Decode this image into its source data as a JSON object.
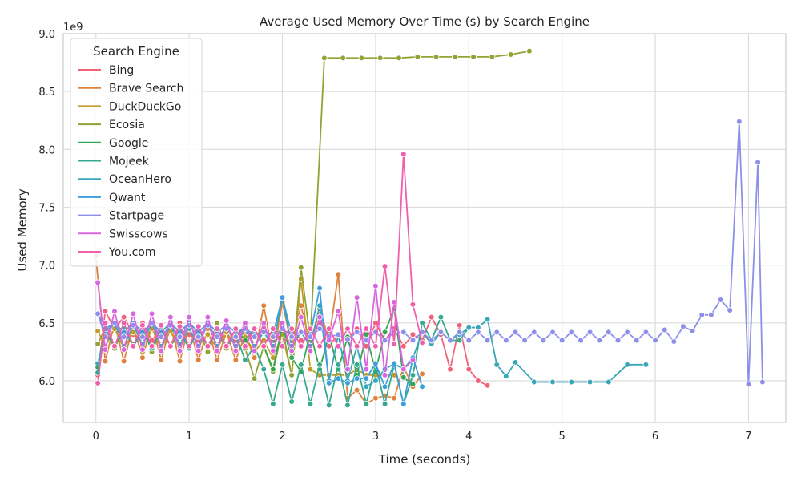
{
  "chart_data": {
    "type": "line",
    "title": "Average Used Memory Over Time (s) by Search Engine",
    "xlabel": "Time (seconds)",
    "ylabel": "Used Memory",
    "y_offset_label": "1e9",
    "xlim": [
      -0.35,
      7.4
    ],
    "ylim": [
      5.64,
      9.0
    ],
    "xticks": [
      0,
      1,
      2,
      3,
      4,
      5,
      6,
      7
    ],
    "xtick_labels": [
      "0",
      "1",
      "2",
      "3",
      "4",
      "5",
      "6",
      "7"
    ],
    "yticks": [
      6.0,
      6.5,
      7.0,
      7.5,
      8.0,
      8.5,
      9.0
    ],
    "ytick_labels": [
      "6.0",
      "6.5",
      "7.0",
      "7.5",
      "8.0",
      "8.5",
      "9.0"
    ],
    "grid": true,
    "legend": {
      "title": "Search Engine",
      "position": "upper-left"
    },
    "series": [
      {
        "name": "Bing",
        "color": "#f0627a",
        "x": [
          0.02,
          0.1,
          0.2,
          0.3,
          0.4,
          0.5,
          0.6,
          0.7,
          0.8,
          0.9,
          1.0,
          1.1,
          1.2,
          1.3,
          1.4,
          1.5,
          1.6,
          1.7,
          1.8,
          1.9,
          2.0,
          2.1,
          2.2,
          2.3,
          2.4,
          2.5,
          2.6,
          2.7,
          2.8,
          2.9,
          3.0,
          3.1,
          3.2,
          3.3,
          3.4,
          3.5,
          3.6,
          3.7,
          3.8,
          3.9,
          4.0,
          4.1,
          4.2
        ],
        "y": [
          6.05,
          6.6,
          6.45,
          6.55,
          6.4,
          6.5,
          6.35,
          6.45,
          6.3,
          6.5,
          6.4,
          6.35,
          6.5,
          6.3,
          6.45,
          6.35,
          6.5,
          6.3,
          6.45,
          6.35,
          6.4,
          6.45,
          6.35,
          6.4,
          6.5,
          6.3,
          6.4,
          6.35,
          6.45,
          6.3,
          6.5,
          6.35,
          6.45,
          6.3,
          6.4,
          6.35,
          6.55,
          6.4,
          6.1,
          6.48,
          6.1,
          6.0,
          5.96
        ]
      },
      {
        "name": "Brave Search",
        "color": "#e0813e",
        "x": [
          0.0,
          0.1,
          0.2,
          0.3,
          0.4,
          0.5,
          0.6,
          0.7,
          0.8,
          0.9,
          1.0,
          1.1,
          1.2,
          1.3,
          1.4,
          1.5,
          1.6,
          1.7,
          1.8,
          1.9,
          2.0,
          2.1,
          2.2,
          2.3,
          2.4,
          2.5,
          2.6,
          2.7,
          2.8,
          2.9,
          3.0,
          3.1,
          3.2,
          3.3,
          3.4,
          3.5
        ],
        "y": [
          7.08,
          6.17,
          6.5,
          6.17,
          6.48,
          6.2,
          6.5,
          6.18,
          6.48,
          6.17,
          6.48,
          6.18,
          6.45,
          6.18,
          6.42,
          6.18,
          6.4,
          6.2,
          6.65,
          6.2,
          6.68,
          6.3,
          6.65,
          6.3,
          6.62,
          6.35,
          6.92,
          5.85,
          5.92,
          5.8,
          5.85,
          5.87,
          5.85,
          6.12,
          5.95,
          6.06
        ]
      },
      {
        "name": "DuckDuckGo",
        "color": "#c49a2c",
        "x": [
          0.02,
          0.1,
          0.2,
          0.3,
          0.4,
          0.5,
          0.6,
          0.7,
          0.8,
          0.9,
          1.0,
          1.1,
          1.2,
          1.3,
          1.4,
          1.5,
          1.6,
          1.7,
          1.8,
          1.9,
          2.0,
          2.1,
          2.2,
          2.3,
          2.4,
          2.5,
          2.6,
          2.7,
          2.8,
          2.9,
          3.0,
          3.1,
          3.2
        ],
        "y": [
          6.43,
          6.3,
          6.45,
          6.28,
          6.42,
          6.25,
          6.45,
          6.28,
          6.43,
          6.27,
          6.45,
          6.3,
          6.4,
          6.28,
          6.42,
          6.3,
          6.38,
          6.25,
          6.35,
          6.2,
          6.4,
          6.05,
          6.88,
          6.1,
          6.05,
          6.05,
          6.05,
          6.05,
          6.1,
          6.05,
          6.05,
          6.05,
          6.05
        ]
      },
      {
        "name": "Ecosia",
        "color": "#8fa432",
        "x": [
          0.02,
          0.1,
          0.2,
          0.3,
          0.4,
          0.5,
          0.6,
          0.7,
          0.8,
          0.9,
          1.0,
          1.1,
          1.2,
          1.3,
          1.4,
          1.5,
          1.6,
          1.7,
          1.8,
          1.9,
          2.0,
          2.1,
          2.2,
          2.3,
          2.45,
          2.65,
          2.85,
          3.05,
          3.25,
          3.45,
          3.65,
          3.85,
          4.05,
          4.25,
          4.45,
          4.65
        ],
        "y": [
          6.32,
          6.45,
          6.28,
          6.45,
          6.3,
          6.47,
          6.25,
          6.45,
          6.3,
          6.47,
          6.28,
          6.45,
          6.25,
          6.5,
          6.28,
          6.45,
          6.28,
          6.02,
          6.3,
          6.08,
          6.45,
          6.05,
          6.98,
          6.35,
          8.79,
          8.79,
          8.79,
          8.79,
          8.79,
          8.8,
          8.8,
          8.8,
          8.8,
          8.8,
          8.82,
          8.85
        ]
      },
      {
        "name": "Google",
        "color": "#33a74e",
        "x": [
          0.02,
          0.1,
          0.2,
          0.3,
          0.4,
          0.5,
          0.6,
          0.7,
          0.8,
          0.9,
          1.0,
          1.1,
          1.2,
          1.3,
          1.4,
          1.5,
          1.6,
          1.7,
          1.8,
          1.9,
          2.0,
          2.1,
          2.2,
          2.3,
          2.4,
          2.5,
          2.6,
          2.7,
          2.8,
          2.9,
          3.0,
          3.1,
          3.2,
          3.3,
          3.4
        ],
        "y": [
          6.12,
          6.42,
          6.3,
          6.45,
          6.32,
          6.42,
          6.3,
          6.45,
          6.3,
          6.42,
          6.3,
          6.45,
          6.3,
          6.42,
          6.3,
          6.45,
          6.35,
          6.45,
          6.3,
          6.1,
          6.48,
          6.2,
          6.08,
          6.42,
          6.1,
          6.4,
          6.1,
          6.38,
          6.05,
          6.4,
          6.08,
          6.42,
          6.62,
          6.03,
          5.97
        ]
      },
      {
        "name": "Mojeek",
        "color": "#36a98f",
        "x": [
          0.02,
          0.1,
          0.2,
          0.3,
          0.4,
          0.5,
          0.6,
          0.7,
          0.8,
          0.9,
          1.0,
          1.1,
          1.2,
          1.3,
          1.4,
          1.5,
          1.6,
          1.7,
          1.8,
          1.9,
          2.0,
          2.1,
          2.2,
          2.3,
          2.4,
          2.5,
          2.6,
          2.7,
          2.8,
          2.9,
          3.0,
          3.1,
          3.2,
          3.3,
          3.4,
          3.5,
          3.6,
          3.7,
          3.8,
          3.9,
          4.0,
          4.1,
          4.2
        ],
        "y": [
          6.07,
          6.42,
          6.3,
          6.45,
          6.3,
          6.42,
          6.28,
          6.45,
          6.3,
          6.43,
          6.28,
          6.45,
          6.3,
          6.45,
          6.3,
          6.4,
          6.18,
          6.3,
          6.1,
          5.8,
          6.14,
          5.82,
          6.14,
          5.8,
          6.14,
          5.79,
          6.14,
          5.79,
          6.14,
          5.8,
          6.14,
          5.8,
          6.14,
          5.8,
          6.05,
          6.5,
          6.35,
          6.55,
          6.35,
          6.35,
          6.46,
          6.46,
          6.53
        ]
      },
      {
        "name": "OceanHero",
        "color": "#38a7b8",
        "x": [
          0.02,
          0.1,
          0.2,
          0.3,
          0.4,
          0.5,
          0.6,
          0.7,
          0.8,
          0.9,
          1.0,
          1.1,
          1.2,
          1.3,
          1.4,
          1.5,
          1.6,
          1.7,
          1.8,
          1.9,
          2.0,
          2.1,
          2.2,
          2.3,
          2.4,
          2.5,
          2.6,
          2.7,
          2.8,
          2.9,
          3.0,
          3.1,
          3.2,
          3.3,
          3.4,
          3.5,
          3.6,
          3.7,
          3.8,
          3.9,
          4.0,
          4.1,
          4.2,
          4.3,
          4.4,
          4.5,
          4.7,
          4.9,
          5.1,
          5.3,
          5.5,
          5.7,
          5.9
        ],
        "y": [
          6.15,
          6.42,
          6.5,
          6.3,
          6.48,
          6.32,
          6.5,
          6.3,
          6.48,
          6.32,
          6.45,
          6.3,
          6.5,
          6.3,
          6.48,
          6.3,
          6.45,
          6.3,
          6.42,
          6.3,
          6.72,
          6.3,
          6.42,
          6.3,
          6.65,
          6.0,
          6.4,
          6.0,
          6.3,
          5.95,
          6.0,
          6.1,
          6.15,
          6.1,
          6.2,
          6.42,
          6.32,
          6.42,
          6.35,
          6.4,
          6.46,
          6.46,
          6.53,
          6.14,
          6.04,
          6.16,
          5.99,
          5.99,
          5.99,
          5.99,
          5.99,
          6.14,
          6.14
        ]
      },
      {
        "name": "Qwant",
        "color": "#3b9fdb",
        "x": [
          0.02,
          0.1,
          0.2,
          0.3,
          0.4,
          0.5,
          0.6,
          0.7,
          0.8,
          0.9,
          1.0,
          1.1,
          1.2,
          1.3,
          1.4,
          1.5,
          1.6,
          1.7,
          1.8,
          1.9,
          2.0,
          2.1,
          2.2,
          2.3,
          2.4,
          2.5,
          2.6,
          2.7,
          2.8,
          2.9,
          3.0,
          3.1,
          3.2,
          3.3,
          3.4,
          3.5
        ],
        "y": [
          6.58,
          6.45,
          6.5,
          6.42,
          6.5,
          6.42,
          6.5,
          6.42,
          6.5,
          6.42,
          6.5,
          6.42,
          6.5,
          6.42,
          6.48,
          6.42,
          6.45,
          6.4,
          6.42,
          6.4,
          6.72,
          6.4,
          6.42,
          6.4,
          6.8,
          5.98,
          6.02,
          5.98,
          6.02,
          6.02,
          6.15,
          5.95,
          6.15,
          5.8,
          6.2,
          5.95
        ]
      },
      {
        "name": "Startpage",
        "color": "#8e8fe8",
        "x": [
          0.02,
          0.1,
          0.2,
          0.3,
          0.4,
          0.5,
          0.6,
          0.7,
          0.8,
          0.9,
          1.0,
          1.1,
          1.2,
          1.3,
          1.4,
          1.5,
          1.6,
          1.7,
          1.8,
          1.9,
          2.0,
          2.1,
          2.2,
          2.3,
          2.4,
          2.5,
          2.6,
          2.7,
          2.8,
          2.9,
          3.0,
          3.1,
          3.2,
          3.3,
          3.4,
          3.5,
          3.6,
          3.7,
          3.8,
          3.9,
          4.0,
          4.1,
          4.2,
          4.3,
          4.4,
          4.5,
          4.6,
          4.7,
          4.8,
          4.9,
          5.0,
          5.1,
          5.2,
          5.3,
          5.4,
          5.5,
          5.6,
          5.7,
          5.8,
          5.9,
          6.0,
          6.1,
          6.2,
          6.3,
          6.4,
          6.5,
          6.6,
          6.7,
          6.8,
          6.9,
          7.0,
          7.1,
          7.15
        ],
        "y": [
          6.58,
          6.38,
          6.5,
          6.38,
          6.48,
          6.38,
          6.5,
          6.38,
          6.48,
          6.38,
          6.48,
          6.38,
          6.48,
          6.38,
          6.45,
          6.38,
          6.45,
          6.38,
          6.42,
          6.38,
          6.45,
          6.38,
          6.42,
          6.38,
          6.45,
          6.38,
          6.4,
          6.36,
          6.42,
          6.35,
          6.42,
          6.35,
          6.42,
          6.42,
          6.35,
          6.42,
          6.35,
          6.42,
          6.35,
          6.42,
          6.35,
          6.42,
          6.35,
          6.42,
          6.35,
          6.42,
          6.35,
          6.42,
          6.35,
          6.42,
          6.35,
          6.42,
          6.35,
          6.42,
          6.35,
          6.42,
          6.35,
          6.42,
          6.35,
          6.42,
          6.35,
          6.44,
          6.34,
          6.47,
          6.43,
          6.57,
          6.57,
          6.7,
          6.61,
          8.24,
          5.97,
          7.89,
          5.99
        ]
      },
      {
        "name": "Swisscows",
        "color": "#d966e0",
        "x": [
          0.02,
          0.1,
          0.2,
          0.3,
          0.4,
          0.5,
          0.6,
          0.7,
          0.8,
          0.9,
          1.0,
          1.1,
          1.2,
          1.3,
          1.4,
          1.5,
          1.6,
          1.7,
          1.8,
          1.9,
          2.0,
          2.1,
          2.2,
          2.3,
          2.4,
          2.5,
          2.6,
          2.7,
          2.8,
          2.9,
          3.0,
          3.1,
          3.2,
          3.3,
          3.4
        ],
        "y": [
          6.85,
          6.27,
          6.6,
          6.27,
          6.58,
          6.27,
          6.58,
          6.26,
          6.55,
          6.26,
          6.55,
          6.26,
          6.55,
          6.26,
          6.52,
          6.26,
          6.5,
          6.26,
          6.5,
          6.26,
          6.5,
          6.26,
          6.55,
          6.26,
          6.55,
          6.35,
          6.6,
          6.1,
          6.72,
          6.1,
          6.82,
          6.05,
          6.68,
          6.1,
          6.18
        ]
      },
      {
        "name": "You.com",
        "color": "#f05fae",
        "x": [
          0.02,
          0.1,
          0.2,
          0.3,
          0.4,
          0.5,
          0.6,
          0.7,
          0.8,
          0.9,
          1.0,
          1.1,
          1.2,
          1.3,
          1.4,
          1.5,
          1.6,
          1.7,
          1.8,
          1.9,
          2.0,
          2.1,
          2.2,
          2.3,
          2.4,
          2.5,
          2.6,
          2.7,
          2.8,
          2.9,
          3.0,
          3.1,
          3.2,
          3.3,
          3.4,
          3.5
        ],
        "y": [
          5.98,
          6.5,
          6.3,
          6.5,
          6.3,
          6.48,
          6.3,
          6.48,
          6.3,
          6.47,
          6.3,
          6.47,
          6.3,
          6.45,
          6.3,
          6.45,
          6.3,
          6.45,
          6.3,
          6.45,
          6.3,
          6.45,
          6.3,
          6.45,
          6.3,
          6.45,
          6.3,
          6.45,
          6.3,
          6.45,
          6.3,
          6.99,
          6.32,
          7.96,
          6.66,
          6.33
        ]
      }
    ]
  }
}
